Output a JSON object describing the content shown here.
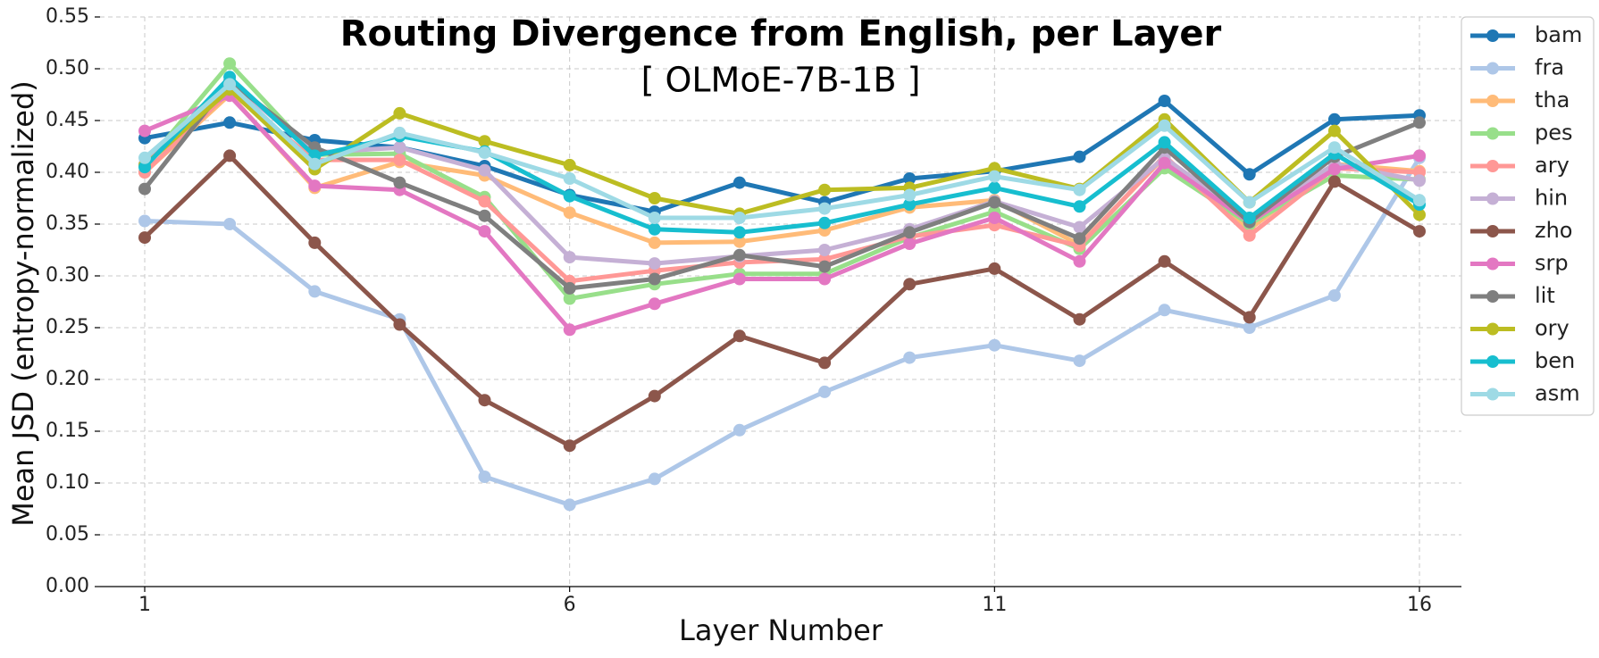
{
  "chart_data": {
    "type": "line",
    "title": "Routing Divergence from English, per Layer",
    "subtitle": "[ OLMoE-7B-1B ]",
    "xlabel": "Layer Number",
    "ylabel": "Mean JSD (entropy-normalized)",
    "xlim": [
      0.5,
      16.5
    ],
    "ylim": [
      0,
      0.55
    ],
    "x": [
      1,
      2,
      3,
      4,
      5,
      6,
      7,
      8,
      9,
      10,
      11,
      12,
      13,
      14,
      15,
      16
    ],
    "xticks": [
      1,
      6,
      11,
      16
    ],
    "xtick_labels": [
      "1",
      "6",
      "11",
      "16"
    ],
    "yticks": [
      0,
      0.05,
      0.1,
      0.15,
      0.2,
      0.25,
      0.3,
      0.35,
      0.4,
      0.45,
      0.5,
      0.55
    ],
    "ytick_labels": [
      "0.00",
      "0.05",
      "0.10",
      "0.15",
      "0.20",
      "0.25",
      "0.30",
      "0.35",
      "0.40",
      "0.45",
      "0.50",
      "0.55"
    ],
    "grid": true,
    "legend_position": "outside-top-right",
    "series": [
      {
        "name": "bam",
        "color": "#1f77b4",
        "values": [
          0.433,
          0.448,
          0.431,
          0.424,
          0.406,
          0.378,
          0.362,
          0.39,
          0.371,
          0.394,
          0.401,
          0.415,
          0.469,
          0.398,
          0.451,
          0.455
        ]
      },
      {
        "name": "fra",
        "color": "#aec7e8",
        "values": [
          0.353,
          0.35,
          0.285,
          0.258,
          0.106,
          0.079,
          0.104,
          0.151,
          0.188,
          0.221,
          0.233,
          0.218,
          0.267,
          0.25,
          0.281,
          0.414
        ]
      },
      {
        "name": "tha",
        "color": "#ffbb78",
        "values": [
          0.4,
          0.475,
          0.385,
          0.41,
          0.397,
          0.361,
          0.332,
          0.333,
          0.344,
          0.366,
          0.373,
          0.33,
          0.415,
          0.345,
          0.408,
          0.401
        ]
      },
      {
        "name": "pes",
        "color": "#98df8a",
        "values": [
          0.407,
          0.505,
          0.417,
          0.418,
          0.376,
          0.278,
          0.292,
          0.302,
          0.302,
          0.337,
          0.362,
          0.326,
          0.404,
          0.35,
          0.397,
          0.393
        ]
      },
      {
        "name": "ary",
        "color": "#ff9896",
        "values": [
          0.4,
          0.478,
          0.412,
          0.412,
          0.372,
          0.295,
          0.305,
          0.313,
          0.316,
          0.338,
          0.349,
          0.329,
          0.416,
          0.339,
          0.404,
          0.4
        ]
      },
      {
        "name": "hin",
        "color": "#c5b0d5",
        "values": [
          0.408,
          0.488,
          0.419,
          0.424,
          0.402,
          0.318,
          0.312,
          0.319,
          0.325,
          0.345,
          0.372,
          0.347,
          0.414,
          0.355,
          0.408,
          0.392
        ]
      },
      {
        "name": "zho",
        "color": "#8c564b",
        "values": [
          0.337,
          0.416,
          0.332,
          0.253,
          0.18,
          0.136,
          0.184,
          0.242,
          0.216,
          0.292,
          0.307,
          0.258,
          0.314,
          0.26,
          0.391,
          0.343
        ]
      },
      {
        "name": "srp",
        "color": "#e377c2",
        "values": [
          0.44,
          0.474,
          0.387,
          0.383,
          0.343,
          0.248,
          0.273,
          0.297,
          0.297,
          0.331,
          0.356,
          0.314,
          0.409,
          0.352,
          0.403,
          0.416
        ]
      },
      {
        "name": "lit",
        "color": "#7f7f7f",
        "values": [
          0.384,
          0.488,
          0.424,
          0.39,
          0.358,
          0.288,
          0.297,
          0.32,
          0.309,
          0.342,
          0.371,
          0.336,
          0.424,
          0.352,
          0.415,
          0.448
        ]
      },
      {
        "name": "ory",
        "color": "#bcbd22",
        "values": [
          0.407,
          0.48,
          0.403,
          0.457,
          0.43,
          0.407,
          0.375,
          0.36,
          0.383,
          0.385,
          0.404,
          0.384,
          0.451,
          0.371,
          0.44,
          0.359
        ]
      },
      {
        "name": "ben",
        "color": "#17becf",
        "values": [
          0.405,
          0.492,
          0.416,
          0.435,
          0.42,
          0.377,
          0.345,
          0.342,
          0.351,
          0.369,
          0.385,
          0.367,
          0.429,
          0.356,
          0.418,
          0.369
        ]
      },
      {
        "name": "asm",
        "color": "#9edae5",
        "values": [
          0.414,
          0.485,
          0.408,
          0.438,
          0.419,
          0.394,
          0.356,
          0.356,
          0.365,
          0.378,
          0.396,
          0.383,
          0.445,
          0.371,
          0.424,
          0.373
        ]
      }
    ]
  }
}
